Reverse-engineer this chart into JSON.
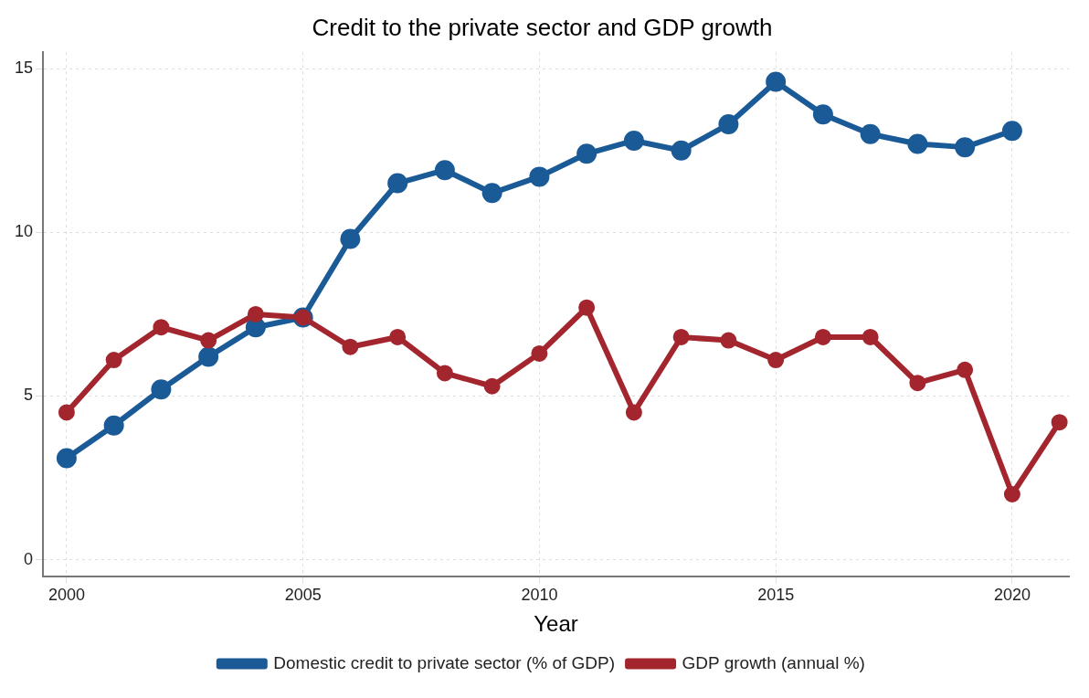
{
  "chart_data": {
    "type": "line",
    "title": "Credit to the private sector and GDP growth",
    "xlabel": "Year",
    "x": [
      2000,
      2001,
      2002,
      2003,
      2004,
      2005,
      2006,
      2007,
      2008,
      2009,
      2010,
      2011,
      2012,
      2013,
      2014,
      2015,
      2016,
      2017,
      2018,
      2019,
      2020,
      2021
    ],
    "series": [
      {
        "name": "Domestic credit to private sector (% of GDP)",
        "color": "#1a5a96",
        "values": [
          3.1,
          4.1,
          5.2,
          6.2,
          7.1,
          7.4,
          9.8,
          11.5,
          11.9,
          11.2,
          11.7,
          12.4,
          12.8,
          12.5,
          13.3,
          14.6,
          13.6,
          13.0,
          12.7,
          12.6,
          13.1,
          null
        ]
      },
      {
        "name": "GDP growth (annual %)",
        "color": "#a3262e",
        "values": [
          4.5,
          6.1,
          7.1,
          6.7,
          7.5,
          7.4,
          6.5,
          6.8,
          5.7,
          5.3,
          6.3,
          7.7,
          4.5,
          6.8,
          6.7,
          6.1,
          6.8,
          6.8,
          5.4,
          5.8,
          2.0,
          4.2
        ]
      }
    ],
    "xlim": [
      1999.5,
      2021.2
    ],
    "xticks": [
      2000,
      2005,
      2010,
      2015,
      2020
    ],
    "ylim": [
      -0.5,
      15.5
    ],
    "yticks": [
      0,
      5,
      10,
      15
    ],
    "grid": true,
    "legend": "bottom",
    "marker": "circle",
    "line_style": "solid"
  }
}
